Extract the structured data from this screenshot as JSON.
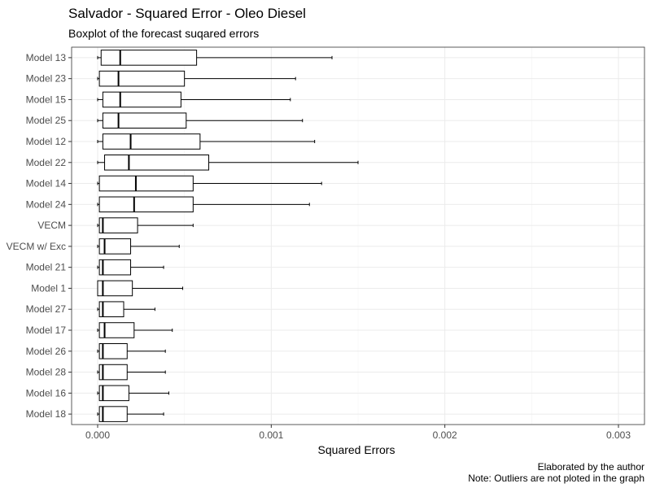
{
  "chart_data": {
    "type": "boxplot",
    "title": "Salvador - Squared Error - Oleo Diesel",
    "subtitle": "Boxplot of the forecast suqared errors",
    "xlabel": "Squared Errors",
    "ylabel": "",
    "xlim": [
      -0.00015,
      0.00315
    ],
    "xticks": [
      0.0,
      0.001,
      0.002,
      0.003
    ],
    "xtick_labels": [
      "0.000",
      "0.001",
      "0.002",
      "0.003"
    ],
    "grid": true,
    "caption_lines": [
      "Elaborated by the author",
      "Note: Outliers are not ploted in the graph"
    ],
    "categories": [
      "Model 13",
      "Model 23",
      "Model 15",
      "Model 25",
      "Model 12",
      "Model 22",
      "Model 14",
      "Model 24",
      "VECM",
      "VECM w/ Exc",
      "Model 21",
      "Model 1",
      "Model 27",
      "Model 17",
      "Model 26",
      "Model 28",
      "Model 16",
      "Model 18"
    ],
    "series": [
      {
        "min": 0.0,
        "q1": 2e-05,
        "median": 0.00013,
        "q3": 0.00057,
        "max": 0.00135
      },
      {
        "min": 0.0,
        "q1": 1e-05,
        "median": 0.00012,
        "q3": 0.0005,
        "max": 0.00114
      },
      {
        "min": 0.0,
        "q1": 3e-05,
        "median": 0.00013,
        "q3": 0.00048,
        "max": 0.00111
      },
      {
        "min": 0.0,
        "q1": 3e-05,
        "median": 0.00012,
        "q3": 0.00051,
        "max": 0.00118
      },
      {
        "min": 0.0,
        "q1": 3e-05,
        "median": 0.00019,
        "q3": 0.00059,
        "max": 0.00125
      },
      {
        "min": 0.0,
        "q1": 4e-05,
        "median": 0.00018,
        "q3": 0.00064,
        "max": 0.0015
      },
      {
        "min": 0.0,
        "q1": 1e-05,
        "median": 0.00022,
        "q3": 0.00055,
        "max": 0.00129
      },
      {
        "min": 0.0,
        "q1": 1e-05,
        "median": 0.00021,
        "q3": 0.00055,
        "max": 0.00122
      },
      {
        "min": 0.0,
        "q1": 1e-05,
        "median": 3e-05,
        "q3": 0.00023,
        "max": 0.00055
      },
      {
        "min": 0.0,
        "q1": 1e-05,
        "median": 4e-05,
        "q3": 0.00019,
        "max": 0.00047
      },
      {
        "min": 0.0,
        "q1": 1e-05,
        "median": 3e-05,
        "q3": 0.00019,
        "max": 0.00038
      },
      {
        "min": 0.0,
        "q1": 0.0,
        "median": 3e-05,
        "q3": 0.0002,
        "max": 0.00049
      },
      {
        "min": 0.0,
        "q1": 1e-05,
        "median": 3e-05,
        "q3": 0.00015,
        "max": 0.00033
      },
      {
        "min": 0.0,
        "q1": 1e-05,
        "median": 4e-05,
        "q3": 0.00021,
        "max": 0.00043
      },
      {
        "min": 0.0,
        "q1": 1e-05,
        "median": 3e-05,
        "q3": 0.00017,
        "max": 0.00039
      },
      {
        "min": 0.0,
        "q1": 1e-05,
        "median": 3e-05,
        "q3": 0.00017,
        "max": 0.00039
      },
      {
        "min": 0.0,
        "q1": 1e-05,
        "median": 3e-05,
        "q3": 0.00018,
        "max": 0.00041
      },
      {
        "min": 0.0,
        "q1": 1e-05,
        "median": 3e-05,
        "q3": 0.00017,
        "max": 0.00038
      }
    ]
  }
}
